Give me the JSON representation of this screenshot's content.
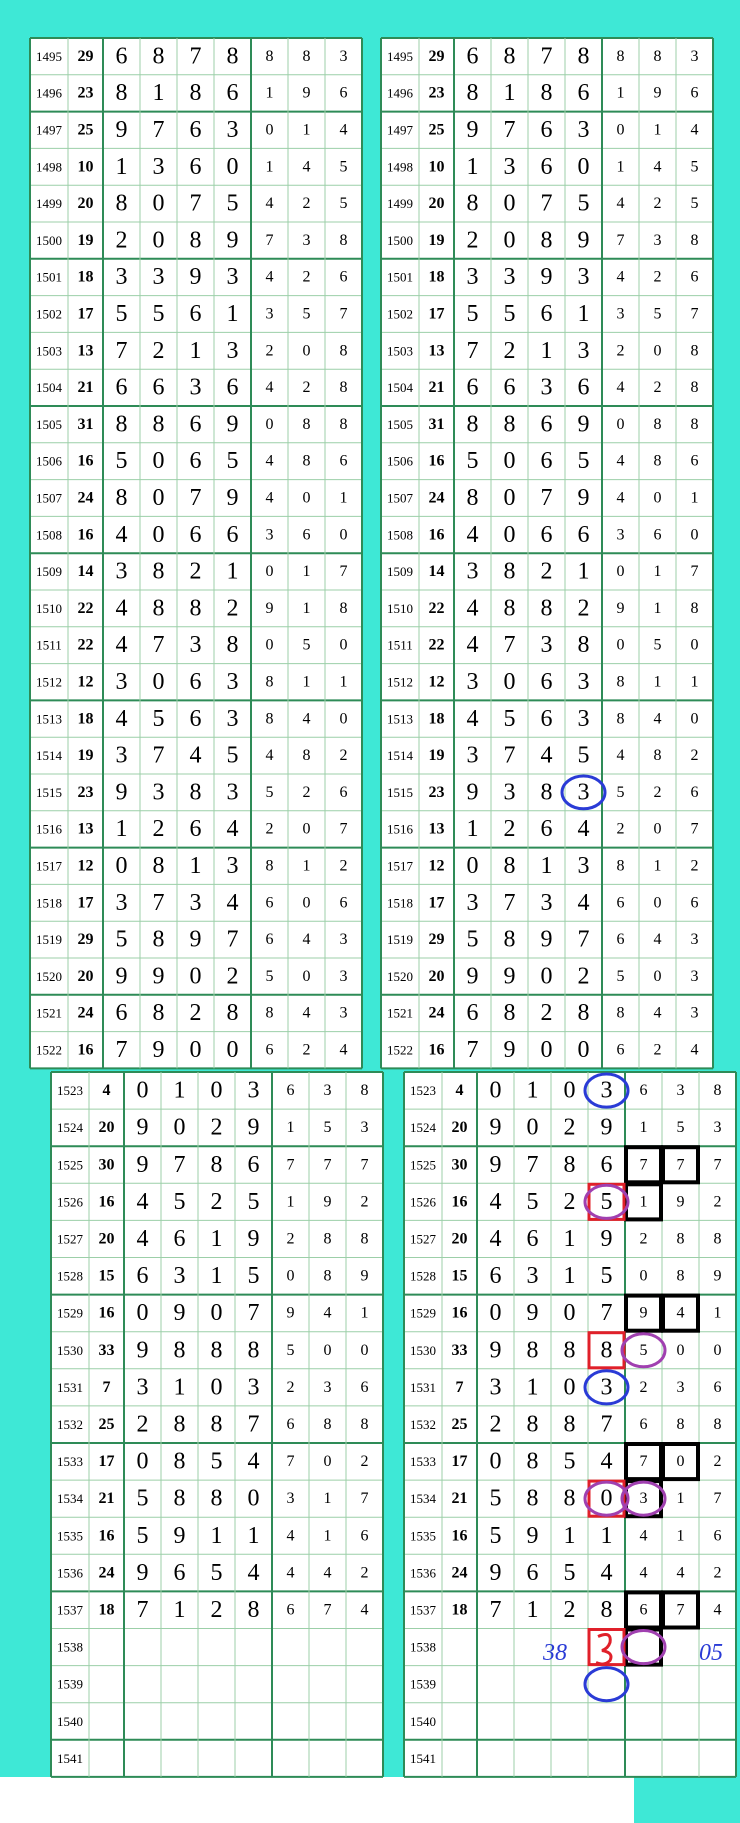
{
  "top_rows": [
    [
      "1495",
      "29",
      "6",
      "8",
      "7",
      "8",
      "8",
      "8",
      "3"
    ],
    [
      "1496",
      "23",
      "8",
      "1",
      "8",
      "6",
      "1",
      "9",
      "6"
    ],
    [
      "1497",
      "25",
      "9",
      "7",
      "6",
      "3",
      "0",
      "1",
      "4"
    ],
    [
      "1498",
      "10",
      "1",
      "3",
      "6",
      "0",
      "1",
      "4",
      "5"
    ],
    [
      "1499",
      "20",
      "8",
      "0",
      "7",
      "5",
      "4",
      "2",
      "5"
    ],
    [
      "1500",
      "19",
      "2",
      "0",
      "8",
      "9",
      "7",
      "3",
      "8"
    ],
    [
      "1501",
      "18",
      "3",
      "3",
      "9",
      "3",
      "4",
      "2",
      "6"
    ],
    [
      "1502",
      "17",
      "5",
      "5",
      "6",
      "1",
      "3",
      "5",
      "7"
    ],
    [
      "1503",
      "13",
      "7",
      "2",
      "1",
      "3",
      "2",
      "0",
      "8"
    ],
    [
      "1504",
      "21",
      "6",
      "6",
      "3",
      "6",
      "4",
      "2",
      "8"
    ],
    [
      "1505",
      "31",
      "8",
      "8",
      "6",
      "9",
      "0",
      "8",
      "8"
    ],
    [
      "1506",
      "16",
      "5",
      "0",
      "6",
      "5",
      "4",
      "8",
      "6"
    ],
    [
      "1507",
      "24",
      "8",
      "0",
      "7",
      "9",
      "4",
      "0",
      "1"
    ],
    [
      "1508",
      "16",
      "4",
      "0",
      "6",
      "6",
      "3",
      "6",
      "0"
    ],
    [
      "1509",
      "14",
      "3",
      "8",
      "2",
      "1",
      "0",
      "1",
      "7"
    ],
    [
      "1510",
      "22",
      "4",
      "8",
      "8",
      "2",
      "9",
      "1",
      "8"
    ],
    [
      "1511",
      "22",
      "4",
      "7",
      "3",
      "8",
      "0",
      "5",
      "0"
    ],
    [
      "1512",
      "12",
      "3",
      "0",
      "6",
      "3",
      "8",
      "1",
      "1"
    ],
    [
      "1513",
      "18",
      "4",
      "5",
      "6",
      "3",
      "8",
      "4",
      "0"
    ],
    [
      "1514",
      "19",
      "3",
      "7",
      "4",
      "5",
      "4",
      "8",
      "2"
    ],
    [
      "1515",
      "23",
      "9",
      "3",
      "8",
      "3",
      "5",
      "2",
      "6"
    ],
    [
      "1516",
      "13",
      "1",
      "2",
      "6",
      "4",
      "2",
      "0",
      "7"
    ],
    [
      "1517",
      "12",
      "0",
      "8",
      "1",
      "3",
      "8",
      "1",
      "2"
    ],
    [
      "1518",
      "17",
      "3",
      "7",
      "3",
      "4",
      "6",
      "0",
      "6"
    ],
    [
      "1519",
      "29",
      "5",
      "8",
      "9",
      "7",
      "6",
      "4",
      "3"
    ],
    [
      "1520",
      "20",
      "9",
      "9",
      "0",
      "2",
      "5",
      "0",
      "3"
    ],
    [
      "1521",
      "24",
      "6",
      "8",
      "2",
      "8",
      "8",
      "4",
      "3"
    ],
    [
      "1522",
      "16",
      "7",
      "9",
      "0",
      "0",
      "6",
      "2",
      "4"
    ]
  ],
  "bottom_rows": [
    [
      "1523",
      "4",
      "0",
      "1",
      "0",
      "3",
      "6",
      "3",
      "8"
    ],
    [
      "1524",
      "20",
      "9",
      "0",
      "2",
      "9",
      "1",
      "5",
      "3"
    ],
    [
      "1525",
      "30",
      "9",
      "7",
      "8",
      "6",
      "7",
      "7",
      "7"
    ],
    [
      "1526",
      "16",
      "4",
      "5",
      "2",
      "5",
      "1",
      "9",
      "2"
    ],
    [
      "1527",
      "20",
      "4",
      "6",
      "1",
      "9",
      "2",
      "8",
      "8"
    ],
    [
      "1528",
      "15",
      "6",
      "3",
      "1",
      "5",
      "0",
      "8",
      "9"
    ],
    [
      "1529",
      "16",
      "0",
      "9",
      "0",
      "7",
      "9",
      "4",
      "1"
    ],
    [
      "1530",
      "33",
      "9",
      "8",
      "8",
      "8",
      "5",
      "0",
      "0"
    ],
    [
      "1531",
      "7",
      "3",
      "1",
      "0",
      "3",
      "2",
      "3",
      "6"
    ],
    [
      "1532",
      "25",
      "2",
      "8",
      "8",
      "7",
      "6",
      "8",
      "8"
    ],
    [
      "1533",
      "17",
      "0",
      "8",
      "5",
      "4",
      "7",
      "0",
      "2"
    ],
    [
      "1534",
      "21",
      "5",
      "8",
      "8",
      "0",
      "3",
      "1",
      "7"
    ],
    [
      "1535",
      "16",
      "5",
      "9",
      "1",
      "1",
      "4",
      "1",
      "6"
    ],
    [
      "1536",
      "24",
      "9",
      "6",
      "5",
      "4",
      "4",
      "4",
      "2"
    ],
    [
      "1537",
      "18",
      "7",
      "1",
      "2",
      "8",
      "6",
      "7",
      "4"
    ],
    [
      "1538"
    ],
    [
      "1539"
    ],
    [
      "1540"
    ],
    [
      "1541"
    ]
  ],
  "annotations": [
    "38",
    "05"
  ]
}
